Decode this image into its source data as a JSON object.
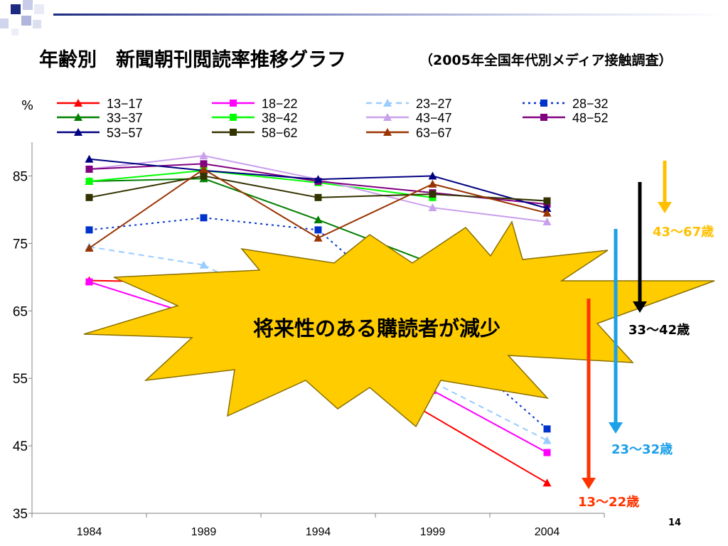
{
  "slide": {
    "title": "年齢別　新聞朝刊閲読率推移グラフ",
    "subtitle": "（2005年全国年代別メディア接触調査）",
    "page_number": "14",
    "callout": "将来性のある購読者が減少"
  },
  "chart_data": {
    "type": "line",
    "title": "年齢別　新聞朝刊閲読率推移グラフ",
    "ylabel": "%",
    "xlabel": "",
    "x": [
      "1984",
      "1989",
      "1994",
      "1999",
      "2004"
    ],
    "ylim": [
      35,
      90
    ],
    "yticks": [
      35,
      45,
      55,
      65,
      75,
      85
    ],
    "grid": false,
    "legend": "top",
    "series": [
      {
        "name": "13−17",
        "color": "#ff0000",
        "dash": "solid",
        "marker": "triangle",
        "values": [
          69.5,
          69.2,
          null,
          null,
          39.5
        ]
      },
      {
        "name": "18−22",
        "color": "#ff00ff",
        "dash": "solid",
        "marker": "square",
        "values": [
          69.3,
          null,
          null,
          53.2,
          44.0
        ]
      },
      {
        "name": "23−27",
        "color": "#99ccff",
        "dash": "dash",
        "marker": "triangle",
        "values": [
          74.5,
          71.8,
          null,
          null,
          45.8
        ]
      },
      {
        "name": "28−32",
        "color": "#0033cc",
        "dash": "dot",
        "marker": "square",
        "values": [
          77.0,
          78.8,
          77.0,
          null,
          47.5
        ]
      },
      {
        "name": "33−37",
        "color": "#007f00",
        "dash": "solid",
        "marker": "triangle",
        "values": [
          84.2,
          84.6,
          78.5,
          72.0,
          null
        ]
      },
      {
        "name": "38−42",
        "color": "#00ff00",
        "dash": "solid",
        "marker": "square",
        "values": [
          84.2,
          85.8,
          84.0,
          81.8,
          null
        ]
      },
      {
        "name": "43−47",
        "color": "#c9a0ec",
        "dash": "solid",
        "marker": "triangle",
        "values": [
          86.0,
          88.0,
          84.5,
          80.3,
          78.2
        ]
      },
      {
        "name": "48−52",
        "color": "#800080",
        "dash": "solid",
        "marker": "square",
        "values": [
          86.0,
          86.8,
          84.2,
          82.5,
          80.8
        ]
      },
      {
        "name": "53−57",
        "color": "#000080",
        "dash": "solid",
        "marker": "triangle",
        "values": [
          87.5,
          85.8,
          84.5,
          85.0,
          80.2
        ]
      },
      {
        "name": "58−62",
        "color": "#333300",
        "dash": "solid",
        "marker": "square",
        "values": [
          81.8,
          85.0,
          81.8,
          82.3,
          81.3
        ]
      },
      {
        "name": "63−67",
        "color": "#993300",
        "dash": "solid",
        "marker": "triangle",
        "values": [
          74.3,
          86.0,
          75.8,
          83.8,
          79.5
        ]
      }
    ],
    "annotations": [
      {
        "label": "43〜67歳",
        "color": "#ffc000"
      },
      {
        "label": "33〜42歳",
        "color": "#000000"
      },
      {
        "label": "23〜32歳",
        "color": "#1ca0e8"
      },
      {
        "label": "13〜22歳",
        "color": "#ff3300"
      }
    ]
  }
}
